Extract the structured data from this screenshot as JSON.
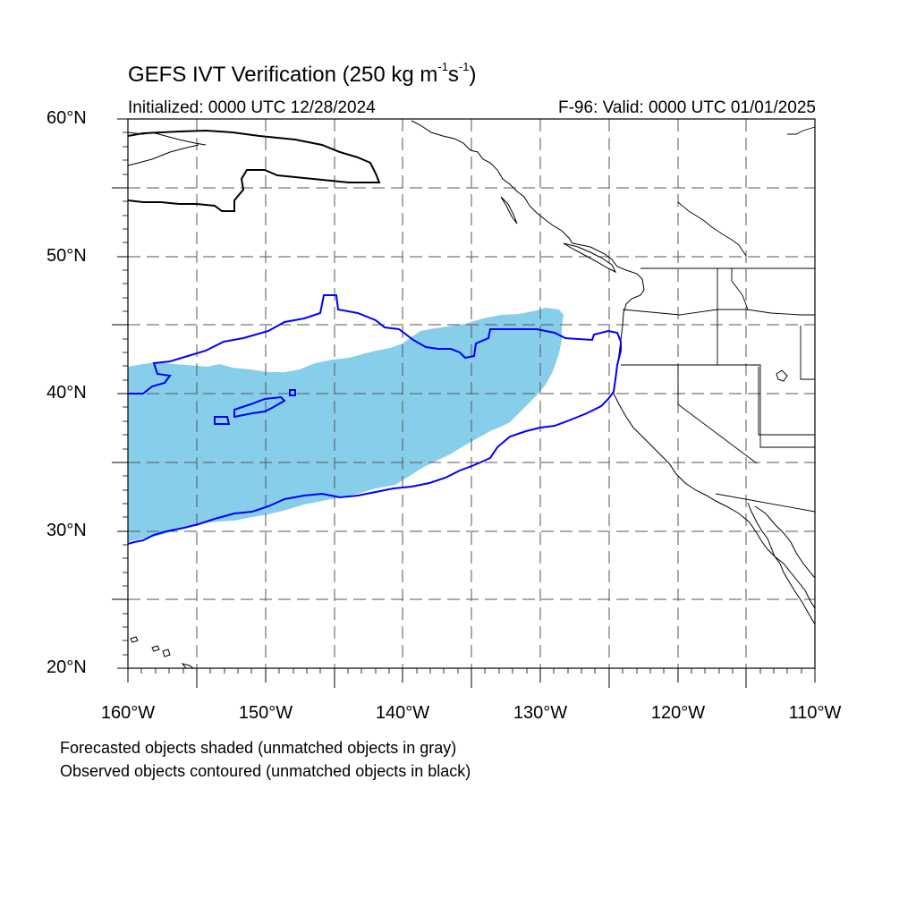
{
  "title": "GEFS IVT Verification (250 kg m",
  "title_exp1": "-1",
  "title_mid": "s",
  "title_exp2": "-1",
  "title_end": ")",
  "initialized": "Initialized: 0000 UTC 12/28/2024",
  "valid": "F-96: Valid: 0000 UTC 01/01/2025",
  "lat_labels": [
    "60°N",
    "50°N",
    "40°N",
    "30°N",
    "20°N"
  ],
  "lon_labels": [
    "160°W",
    "150°W",
    "140°W",
    "130°W",
    "120°W",
    "110°W"
  ],
  "legend": {
    "forecast_note": "Forecasted objects shaded (unmatched objects in gray)",
    "observed_note": "Observed objects contoured (unmatched objects in black)"
  },
  "colors": {
    "forecast_fill": "#87ceeb",
    "observed_matched": "#0000ff",
    "observed_unmatched": "#000000",
    "coastline": "#000000",
    "grid": "#555555"
  },
  "map_extent": {
    "lon_min": -160,
    "lon_max": -110,
    "lat_min": 20,
    "lat_max": 60
  }
}
